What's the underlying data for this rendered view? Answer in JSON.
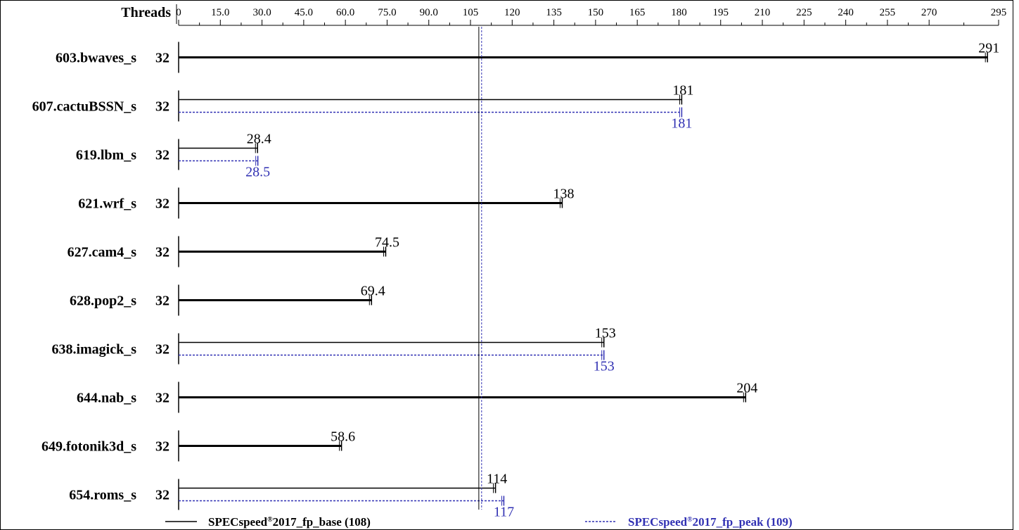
{
  "chart_data": {
    "type": "bar",
    "orientation": "horizontal",
    "threads_header": "Threads",
    "ticks": [
      0,
      15.0,
      30.0,
      45.0,
      60.0,
      75.0,
      90.0,
      105,
      120,
      135,
      150,
      165,
      180,
      195,
      210,
      225,
      240,
      255,
      270,
      295
    ],
    "tick_labels": [
      "0",
      "15.0",
      "30.0",
      "45.0",
      "60.0",
      "75.0",
      "90.0",
      "105",
      "120",
      "135",
      "150",
      "165",
      "180",
      "195",
      "210",
      "225",
      "240",
      "255",
      "270",
      "295"
    ],
    "xlim": [
      0,
      295
    ],
    "benchmarks": [
      {
        "name": "603.bwaves_s",
        "threads": "32",
        "base": 291,
        "base_label": "291",
        "peak": null,
        "peak_label": ""
      },
      {
        "name": "607.cactuBSSN_s",
        "threads": "32",
        "base": 181,
        "base_label": "181",
        "peak": 181,
        "peak_label": "181"
      },
      {
        "name": "619.lbm_s",
        "threads": "32",
        "base": 28.4,
        "base_label": "28.4",
        "peak": 28.5,
        "peak_label": "28.5"
      },
      {
        "name": "621.wrf_s",
        "threads": "32",
        "base": 138,
        "base_label": "138",
        "peak": null,
        "peak_label": ""
      },
      {
        "name": "627.cam4_s",
        "threads": "32",
        "base": 74.5,
        "base_label": "74.5",
        "peak": null,
        "peak_label": ""
      },
      {
        "name": "628.pop2_s",
        "threads": "32",
        "base": 69.4,
        "base_label": "69.4",
        "peak": null,
        "peak_label": ""
      },
      {
        "name": "638.imagick_s",
        "threads": "32",
        "base": 153,
        "base_label": "153",
        "peak": 153,
        "peak_label": "153"
      },
      {
        "name": "644.nab_s",
        "threads": "32",
        "base": 204,
        "base_label": "204",
        "peak": null,
        "peak_label": ""
      },
      {
        "name": "649.fotonik3d_s",
        "threads": "32",
        "base": 58.6,
        "base_label": "58.6",
        "peak": null,
        "peak_label": ""
      },
      {
        "name": "654.roms_s",
        "threads": "32",
        "base": 114,
        "base_label": "114",
        "peak": 117,
        "peak_label": "117"
      }
    ],
    "reference_lines": {
      "base": 108,
      "peak": 109
    },
    "legend": {
      "base": {
        "prefix": "SPECspeed",
        "reg": "®",
        "suffix": "2017_fp_base (108)"
      },
      "peak": {
        "prefix": "SPECspeed",
        "reg": "®",
        "suffix": "2017_fp_peak (109)"
      }
    },
    "colors": {
      "base": "#000000",
      "peak": "#3131b3"
    }
  }
}
